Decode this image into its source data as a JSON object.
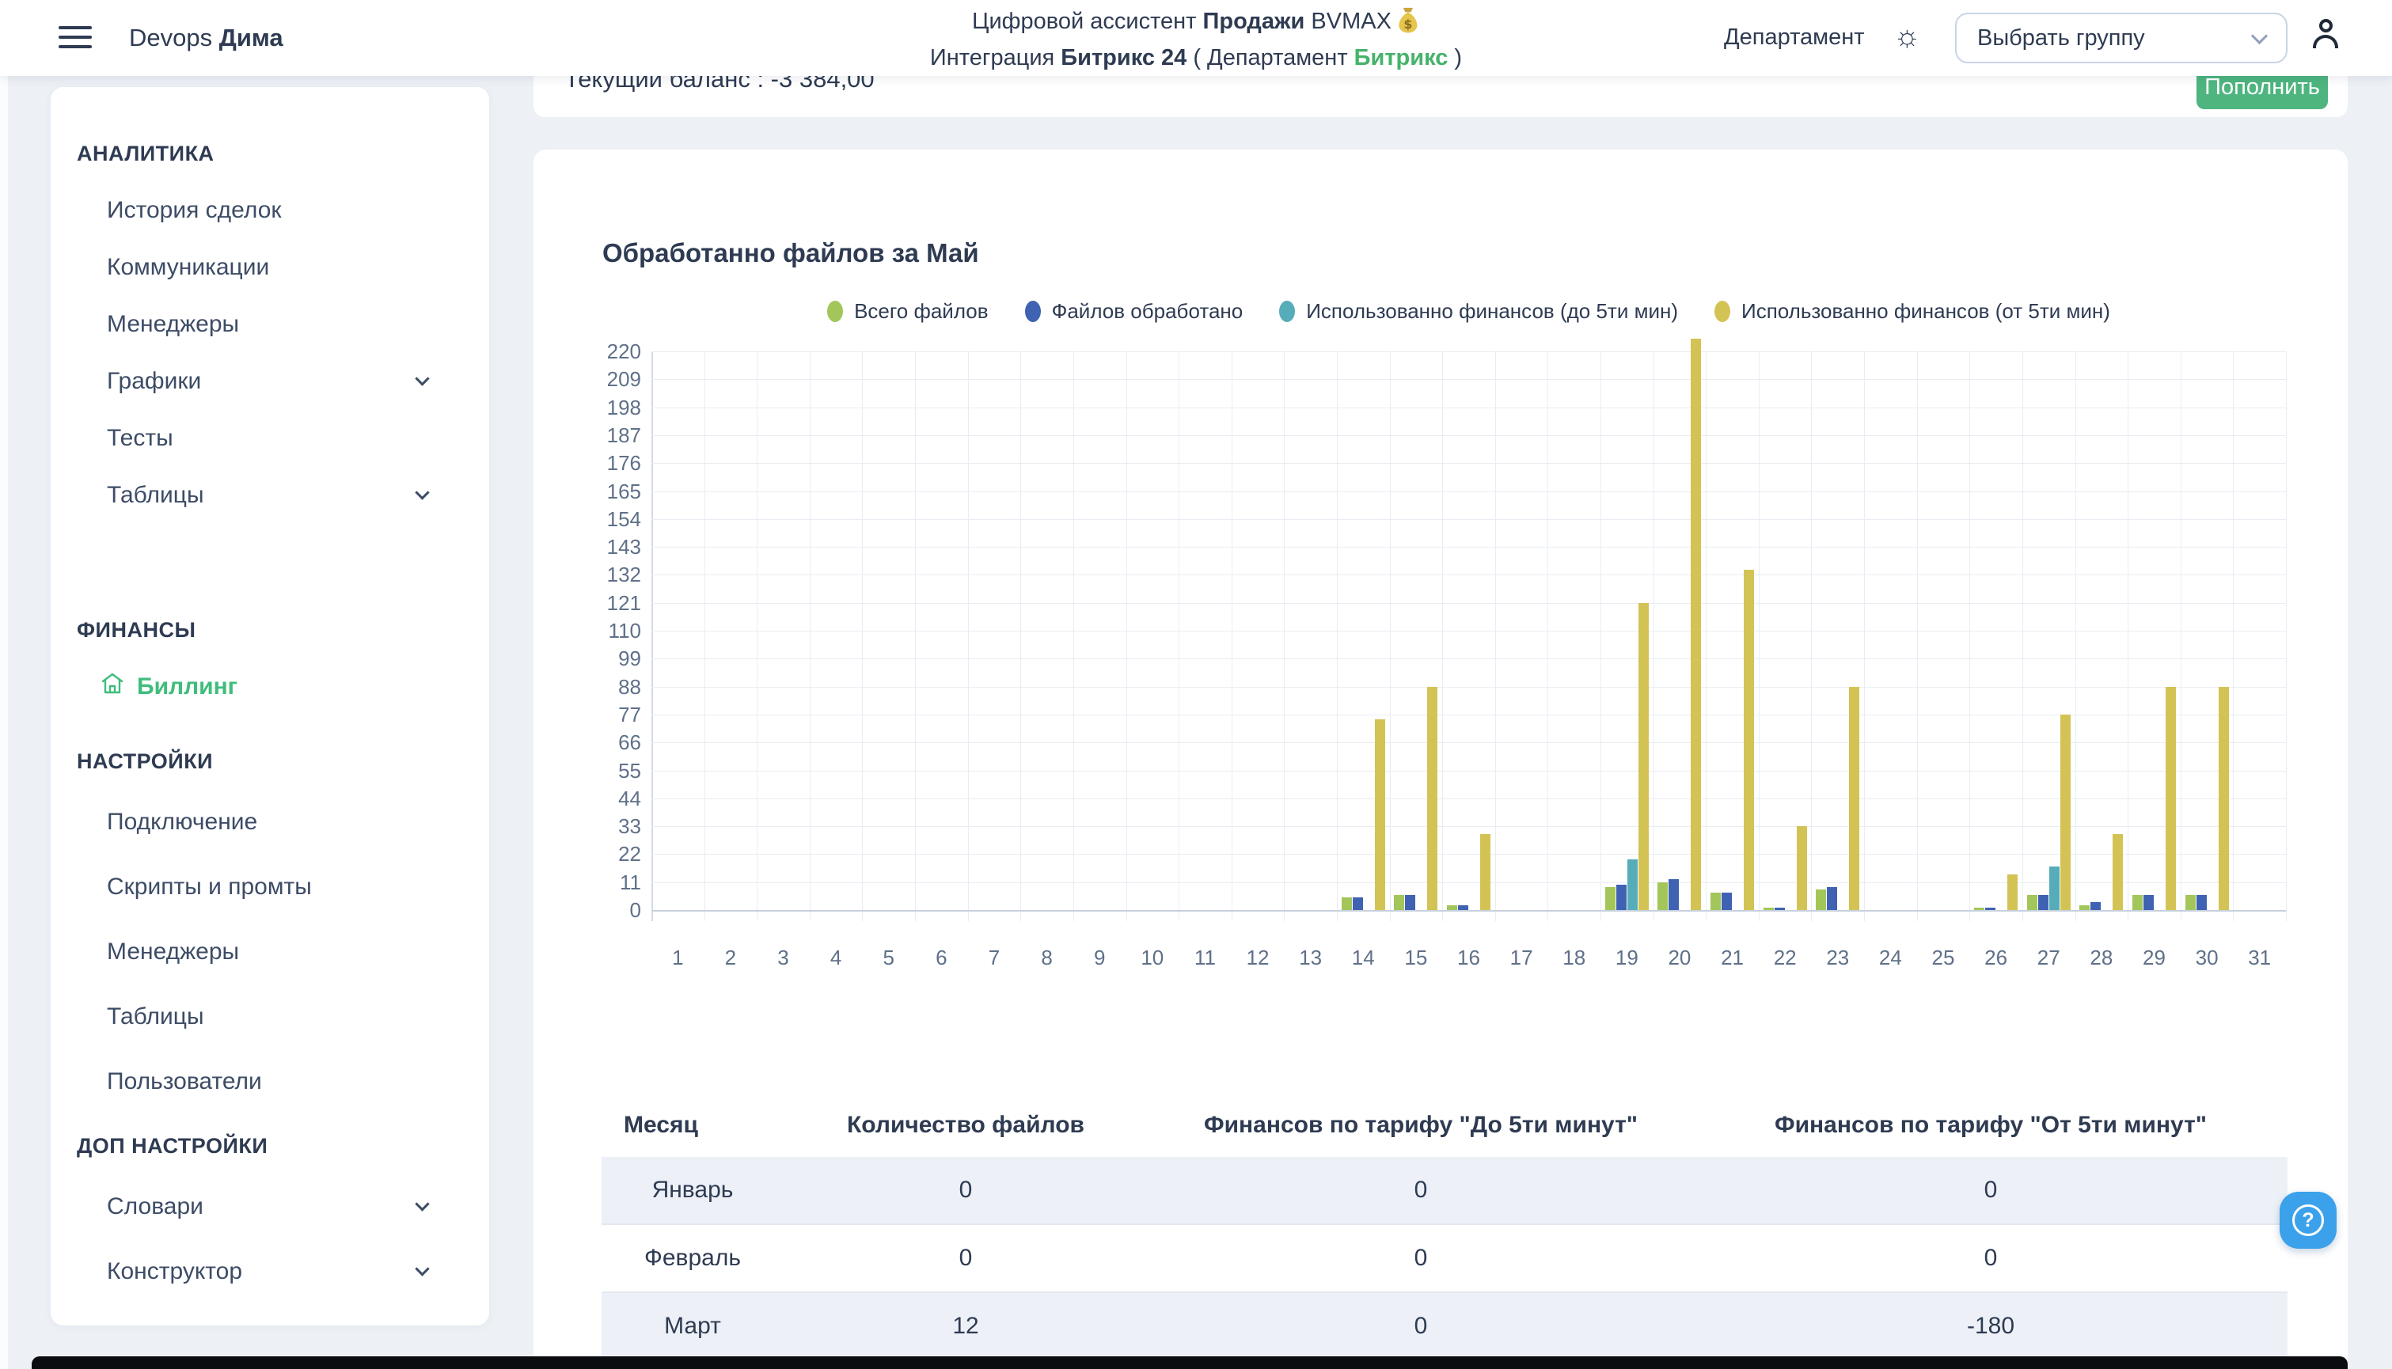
{
  "header": {
    "brand_regular": "Devops",
    "brand_bold": "Дима",
    "title1": {
      "pre": "Цифровой ассистент ",
      "bold": "Продажи",
      "post": " BVMAX"
    },
    "title2": {
      "pre": "Интеграция ",
      "bold": "Битрикс 24",
      "mid": " ( Департамент ",
      "accent": "Битрикс",
      "post": " )"
    },
    "department": "Департамент",
    "group_select_value": "Выбрать группу"
  },
  "balance": {
    "text": "Текущий баланс : -3 384,00",
    "topup": "Пополнить"
  },
  "sidebar": {
    "sections": [
      {
        "header": "АНАЛИТИКА",
        "items": [
          {
            "label": "История сделок"
          },
          {
            "label": "Коммуникации"
          },
          {
            "label": "Менеджеры"
          },
          {
            "label": "Графики",
            "chevron": true
          },
          {
            "label": "Тесты"
          },
          {
            "label": "Таблицы",
            "chevron": true
          }
        ]
      },
      {
        "header": "ФИНАНСЫ",
        "items": [
          {
            "label": "Биллинг",
            "active": true,
            "icon": "home"
          }
        ]
      },
      {
        "header": "НАСТРОЙКИ",
        "items": [
          {
            "label": "Подключение"
          },
          {
            "label": "Скрипты и промты"
          },
          {
            "label": "Менеджеры"
          },
          {
            "label": "Таблицы"
          },
          {
            "label": "Пользователи"
          }
        ]
      },
      {
        "header": "ДОП НАСТРОЙКИ",
        "items": [
          {
            "label": "Словари",
            "chevron": true
          },
          {
            "label": "Конструктор",
            "chevron": true
          }
        ]
      }
    ]
  },
  "chart_data": {
    "type": "bar",
    "title": "Обработанно файлов за Май",
    "x": [
      1,
      2,
      3,
      4,
      5,
      6,
      7,
      8,
      9,
      10,
      11,
      12,
      13,
      14,
      15,
      16,
      17,
      18,
      19,
      20,
      21,
      22,
      23,
      24,
      25,
      26,
      27,
      28,
      29,
      30,
      31
    ],
    "xlabel": "",
    "ylabel": "",
    "ylim": [
      0,
      220
    ],
    "ytick_step": 11,
    "grid": true,
    "legend_position": "top",
    "series": [
      {
        "name": "Всего файлов",
        "color": "#a3c65a",
        "values": [
          0,
          0,
          0,
          0,
          0,
          0,
          0,
          0,
          0,
          0,
          0,
          0,
          0,
          5,
          6,
          2,
          0,
          0,
          9,
          11,
          7,
          1,
          8,
          0,
          0,
          1,
          6,
          2,
          6,
          6,
          0
        ]
      },
      {
        "name": "Файлов обработано",
        "color": "#3f62b2",
        "values": [
          0,
          0,
          0,
          0,
          0,
          0,
          0,
          0,
          0,
          0,
          0,
          0,
          0,
          5,
          6,
          2,
          0,
          0,
          10,
          12,
          7,
          1,
          9,
          0,
          0,
          1,
          6,
          3,
          6,
          6,
          0
        ]
      },
      {
        "name": "Использованно финансов (до 5ти мин)",
        "color": "#56adb9",
        "values": [
          0,
          0,
          0,
          0,
          0,
          0,
          0,
          0,
          0,
          0,
          0,
          0,
          0,
          0,
          0,
          0,
          0,
          0,
          20,
          0,
          0,
          0,
          0,
          0,
          0,
          0,
          17,
          0,
          0,
          0,
          0
        ]
      },
      {
        "name": "Использованно финансов (от 5ти мин)",
        "color": "#d3c355",
        "values": [
          0,
          0,
          0,
          0,
          0,
          0,
          0,
          0,
          0,
          0,
          0,
          0,
          0,
          75,
          88,
          30,
          0,
          0,
          121,
          225,
          134,
          33,
          88,
          0,
          0,
          14,
          77,
          30,
          88,
          88,
          0
        ]
      }
    ]
  },
  "table": {
    "columns": [
      "Месяц",
      "Количество файлов",
      "Финансов по тарифу \"До 5ти минут\"",
      "Финансов по тарифу \"От 5ти минут\""
    ],
    "rows": [
      {
        "month": "Январь",
        "files": "0",
        "tariff_under5": "0",
        "tariff_over5": "0"
      },
      {
        "month": "Февраль",
        "files": "0",
        "tariff_under5": "0",
        "tariff_over5": "0"
      },
      {
        "month": "Март",
        "files": "12",
        "tariff_under5": "0",
        "tariff_over5": "-180"
      }
    ]
  },
  "help": {
    "icon": "?"
  },
  "colors": {
    "accent_green": "#3fbd7c",
    "button_green": "#4eb57f",
    "fab_blue": "#3ba1ea",
    "page_bg": "#edf1f6",
    "grid_line": "#e9edf3",
    "tick_text": "#5f7089"
  }
}
